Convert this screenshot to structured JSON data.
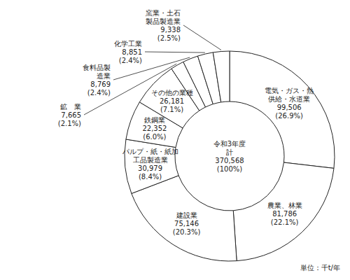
{
  "chart_data": {
    "type": "pie",
    "categories": [
      "電気・ガス・熱\n供給・水道業",
      "農業、林業",
      "建設業",
      "パルプ・紙・紙加\n工品製造業",
      "鉄鋼業",
      "その他の業種",
      "鉱　業",
      "食料品製\n造業",
      "化学工業",
      "窯業・土石\n製品製造業"
    ],
    "values": [
      99506,
      81786,
      75146,
      30979,
      22352,
      26181,
      7665,
      8769,
      8851,
      9338
    ],
    "value_labels": [
      "99,506",
      "81,786",
      "75,146",
      "30,979",
      "22,352",
      "26,181",
      "7,665",
      "8,769",
      "8,851",
      "9,338"
    ],
    "shares": [
      26.9,
      22.1,
      20.3,
      8.4,
      6.0,
      7.1,
      2.1,
      2.4,
      2.4,
      2.5
    ],
    "share_labels": [
      "(26.9%)",
      "(22.1%)",
      "(20.3%)",
      "(8.4%)",
      "(6.0%)",
      "(7.1%)",
      "(2.1%)",
      "(2.4%)",
      "(2.4%)",
      "(2.5%)"
    ],
    "center_text": [
      "令和3年度",
      "計",
      "370,568",
      "(100%)"
    ],
    "annotations": [
      "単位：千t/年"
    ],
    "color": "#ffffff"
  }
}
